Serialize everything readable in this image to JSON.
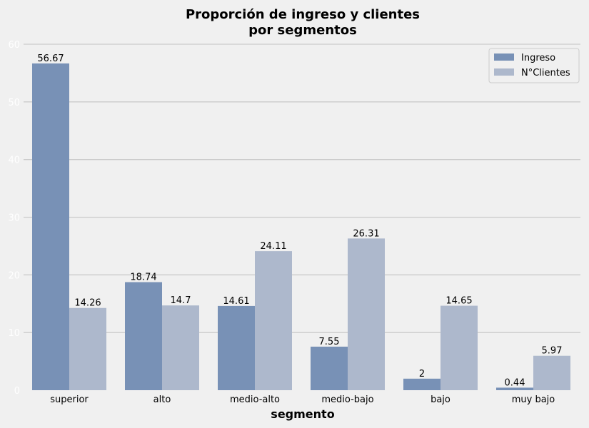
{
  "chart_data": {
    "type": "bar",
    "title": [
      "Proporción de ingreso y clientes",
      "por segmentos"
    ],
    "xlabel": "segmento",
    "ylabel": "",
    "ylim": [
      0,
      60
    ],
    "yticks": [
      0,
      10,
      20,
      30,
      40,
      50,
      60
    ],
    "grid": "horizontal",
    "legend_position": "top-right",
    "categories": [
      "superior",
      "alto",
      "medio-alto",
      "medio-bajo",
      "bajo",
      "muy bajo"
    ],
    "series": [
      {
        "name": "Ingreso",
        "color": "#7891b6",
        "values": [
          56.67,
          18.74,
          14.61,
          7.55,
          2,
          0.44
        ]
      },
      {
        "name": "N°Clientes",
        "color": "#adb8cc",
        "values": [
          14.26,
          14.7,
          24.11,
          26.31,
          14.65,
          5.97
        ]
      }
    ]
  }
}
